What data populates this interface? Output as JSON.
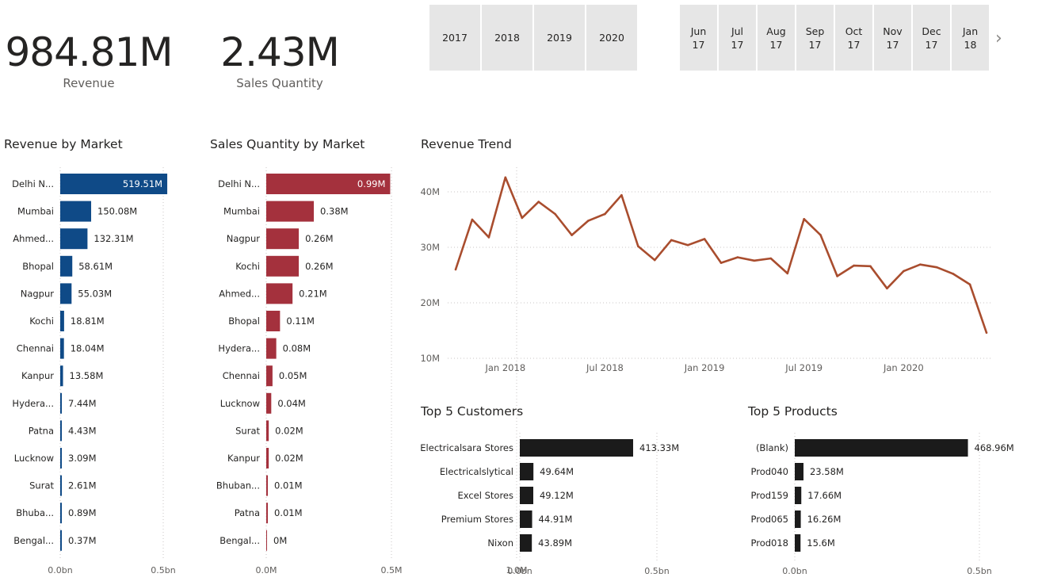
{
  "kpis": [
    {
      "value": "984.81M",
      "label": "Revenue"
    },
    {
      "value": "2.43M",
      "label": "Sales Quantity"
    }
  ],
  "year_slicer": [
    "2017",
    "2018",
    "2019",
    "2020"
  ],
  "month_slicer": [
    {
      "month": "Jun",
      "year": "17"
    },
    {
      "month": "Jul",
      "year": "17"
    },
    {
      "month": "Aug",
      "year": "17"
    },
    {
      "month": "Sep",
      "year": "17"
    },
    {
      "month": "Oct",
      "year": "17"
    },
    {
      "month": "Nov",
      "year": "17"
    },
    {
      "month": "Dec",
      "year": "17"
    },
    {
      "month": "Jan",
      "year": "18"
    }
  ],
  "next_icon": "chevron-right-icon",
  "colors": {
    "revenue_bar": "#0f4a87",
    "quantity_bar": "#a4313d",
    "trend_line": "#a94d2e",
    "top5_bar": "#1b1b1b",
    "slicer_bg": "#e6e6e6"
  },
  "chart_data": [
    {
      "type": "bar",
      "orientation": "horizontal",
      "title": "Revenue by Market",
      "categories": [
        "Delhi N...",
        "Mumbai",
        "Ahmed...",
        "Bhopal",
        "Nagpur",
        "Kochi",
        "Chennai",
        "Kanpur",
        "Hydera...",
        "Patna",
        "Lucknow",
        "Surat",
        "Bhuba...",
        "Bengal..."
      ],
      "values": [
        519.51,
        150.08,
        132.31,
        58.61,
        55.03,
        18.81,
        18.04,
        13.58,
        7.44,
        4.43,
        3.09,
        2.61,
        0.89,
        0.37
      ],
      "data_labels": [
        "519.51M",
        "150.08M",
        "132.31M",
        "58.61M",
        "55.03M",
        "18.81M",
        "18.04M",
        "13.58M",
        "7.44M",
        "4.43M",
        "3.09M",
        "2.61M",
        "0.89M",
        "0.37M"
      ],
      "x_ticks": [
        "0.0bn",
        "0.5bn"
      ],
      "xlim": [
        0,
        500
      ],
      "grid": true
    },
    {
      "type": "bar",
      "orientation": "horizontal",
      "title": "Sales Quantity by Market",
      "categories": [
        "Delhi N...",
        "Mumbai",
        "Nagpur",
        "Kochi",
        "Ahmed...",
        "Bhopal",
        "Hydera...",
        "Chennai",
        "Lucknow",
        "Surat",
        "Kanpur",
        "Bhuban...",
        "Patna",
        "Bengal..."
      ],
      "values": [
        0.99,
        0.38,
        0.26,
        0.26,
        0.21,
        0.11,
        0.08,
        0.05,
        0.04,
        0.02,
        0.02,
        0.01,
        0.01,
        0.0
      ],
      "data_labels": [
        "0.99M",
        "0.38M",
        "0.26M",
        "0.26M",
        "0.21M",
        "0.11M",
        "0.08M",
        "0.05M",
        "0.04M",
        "0.02M",
        "0.02M",
        "0.01M",
        "0.01M",
        "0M"
      ],
      "x_ticks": [
        "0.0M",
        "0.5M",
        "1.0M"
      ],
      "xlim": [
        0,
        1.0
      ],
      "grid": true
    },
    {
      "type": "line",
      "title": "Revenue Trend",
      "x": [
        "2017-10",
        "2017-11",
        "2017-12",
        "2018-01",
        "2018-02",
        "2018-03",
        "2018-04",
        "2018-05",
        "2018-06",
        "2018-07",
        "2018-08",
        "2018-09",
        "2018-10",
        "2018-11",
        "2018-12",
        "2019-01",
        "2019-02",
        "2019-03",
        "2019-04",
        "2019-05",
        "2019-06",
        "2019-07",
        "2019-08",
        "2019-09",
        "2019-10",
        "2019-11",
        "2019-12",
        "2020-01",
        "2020-02",
        "2020-03",
        "2020-04",
        "2020-05",
        "2020-06"
      ],
      "values": [
        26.0,
        35.0,
        31.8,
        42.6,
        35.3,
        38.2,
        36.0,
        32.2,
        34.8,
        36.0,
        39.4,
        30.2,
        27.7,
        31.3,
        30.4,
        31.5,
        27.2,
        28.2,
        27.6,
        28.0,
        25.3,
        35.1,
        32.2,
        24.8,
        26.7,
        26.6,
        22.6,
        25.7,
        26.9,
        26.4,
        25.2,
        23.3,
        14.6
      ],
      "y_ticks": [
        "10M",
        "20M",
        "30M",
        "40M"
      ],
      "x_ticks": [
        "Jan 2018",
        "Jul 2018",
        "Jan 2019",
        "Jul 2019",
        "Jan 2020"
      ],
      "ylim": [
        10,
        43
      ],
      "grid": true
    },
    {
      "type": "bar",
      "orientation": "horizontal",
      "title": "Top 5 Customers",
      "categories": [
        "Electricalsara Stores",
        "Electricalslytical",
        "Excel Stores",
        "Premium Stores",
        "Nixon"
      ],
      "values": [
        413.33,
        49.64,
        49.12,
        44.91,
        43.89
      ],
      "data_labels": [
        "413.33M",
        "49.64M",
        "49.12M",
        "44.91M",
        "43.89M"
      ],
      "x_ticks": [
        "0.0bn",
        "0.5bn"
      ],
      "xlim": [
        0,
        500
      ],
      "grid": true
    },
    {
      "type": "bar",
      "orientation": "horizontal",
      "title": "Top 5 Products",
      "categories": [
        "(Blank)",
        "Prod040",
        "Prod159",
        "Prod065",
        "Prod018"
      ],
      "values": [
        468.96,
        23.58,
        17.66,
        16.26,
        15.6
      ],
      "data_labels": [
        "468.96M",
        "23.58M",
        "17.66M",
        "16.26M",
        "15.6M"
      ],
      "x_ticks": [
        "0.0bn",
        "0.5bn"
      ],
      "xlim": [
        0,
        500
      ],
      "grid": true
    }
  ]
}
